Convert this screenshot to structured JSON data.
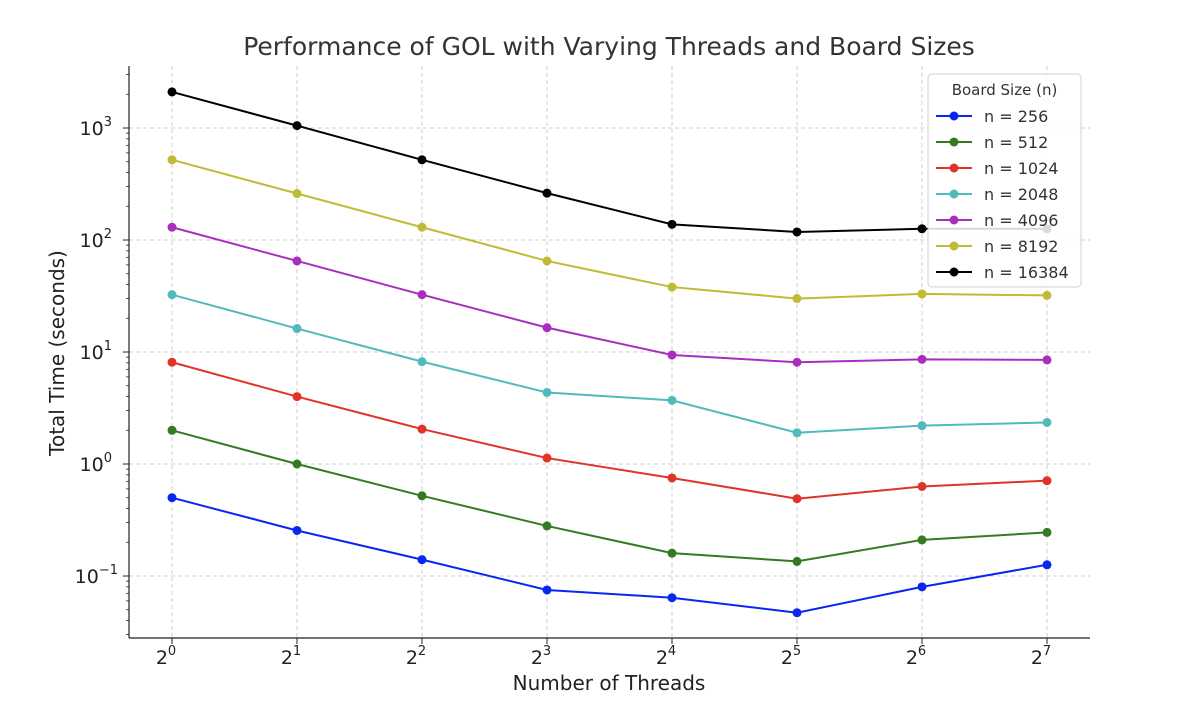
{
  "chart_data": {
    "type": "line",
    "title": "Performance of GOL with Varying Threads and Board Sizes",
    "xlabel": "Number of Threads",
    "ylabel": "Total Time (seconds)",
    "x": [
      1,
      2,
      4,
      8,
      16,
      32,
      64,
      128
    ],
    "x_tick_labels": [
      {
        "base": "2",
        "exp": "0"
      },
      {
        "base": "2",
        "exp": "1"
      },
      {
        "base": "2",
        "exp": "2"
      },
      {
        "base": "2",
        "exp": "3"
      },
      {
        "base": "2",
        "exp": "4"
      },
      {
        "base": "2",
        "exp": "5"
      },
      {
        "base": "2",
        "exp": "6"
      },
      {
        "base": "2",
        "exp": "7"
      }
    ],
    "x_scale": "log2",
    "y_scale": "log10",
    "y_tick_values": [
      0.1,
      1,
      10,
      100,
      1000
    ],
    "y_tick_labels": [
      {
        "base": "10",
        "exp": "−1"
      },
      {
        "base": "10",
        "exp": "0"
      },
      {
        "base": "10",
        "exp": "1"
      },
      {
        "base": "10",
        "exp": "2"
      },
      {
        "base": "10",
        "exp": "3"
      }
    ],
    "grid": true,
    "legend_title": "Board Size (n)",
    "legend_position": "top-right",
    "series": [
      {
        "name": "n = 256",
        "color": "#0a27f2",
        "values": [
          0.5,
          0.255,
          0.14,
          0.075,
          0.064,
          0.047,
          0.08,
          0.126
        ]
      },
      {
        "name": "n = 512",
        "color": "#357a22",
        "values": [
          2.0,
          1.0,
          0.52,
          0.28,
          0.16,
          0.135,
          0.21,
          0.245
        ]
      },
      {
        "name": "n = 1024",
        "color": "#e03428",
        "values": [
          8.1,
          4.0,
          2.05,
          1.13,
          0.75,
          0.49,
          0.63,
          0.71
        ]
      },
      {
        "name": "n = 2048",
        "color": "#52babc",
        "values": [
          32.5,
          16.2,
          8.2,
          4.35,
          3.7,
          1.9,
          2.2,
          2.35
        ]
      },
      {
        "name": "n = 4096",
        "color": "#a82fbd",
        "values": [
          130,
          65,
          32.5,
          16.5,
          9.4,
          8.1,
          8.6,
          8.5
        ]
      },
      {
        "name": "n = 8192",
        "color": "#bfbb35",
        "values": [
          520,
          260,
          130,
          65,
          38,
          30,
          33,
          32
        ]
      },
      {
        "name": "n = 16384",
        "color": "#000000",
        "values": [
          2100,
          1050,
          520,
          262,
          138,
          118,
          126,
          126
        ]
      }
    ]
  }
}
